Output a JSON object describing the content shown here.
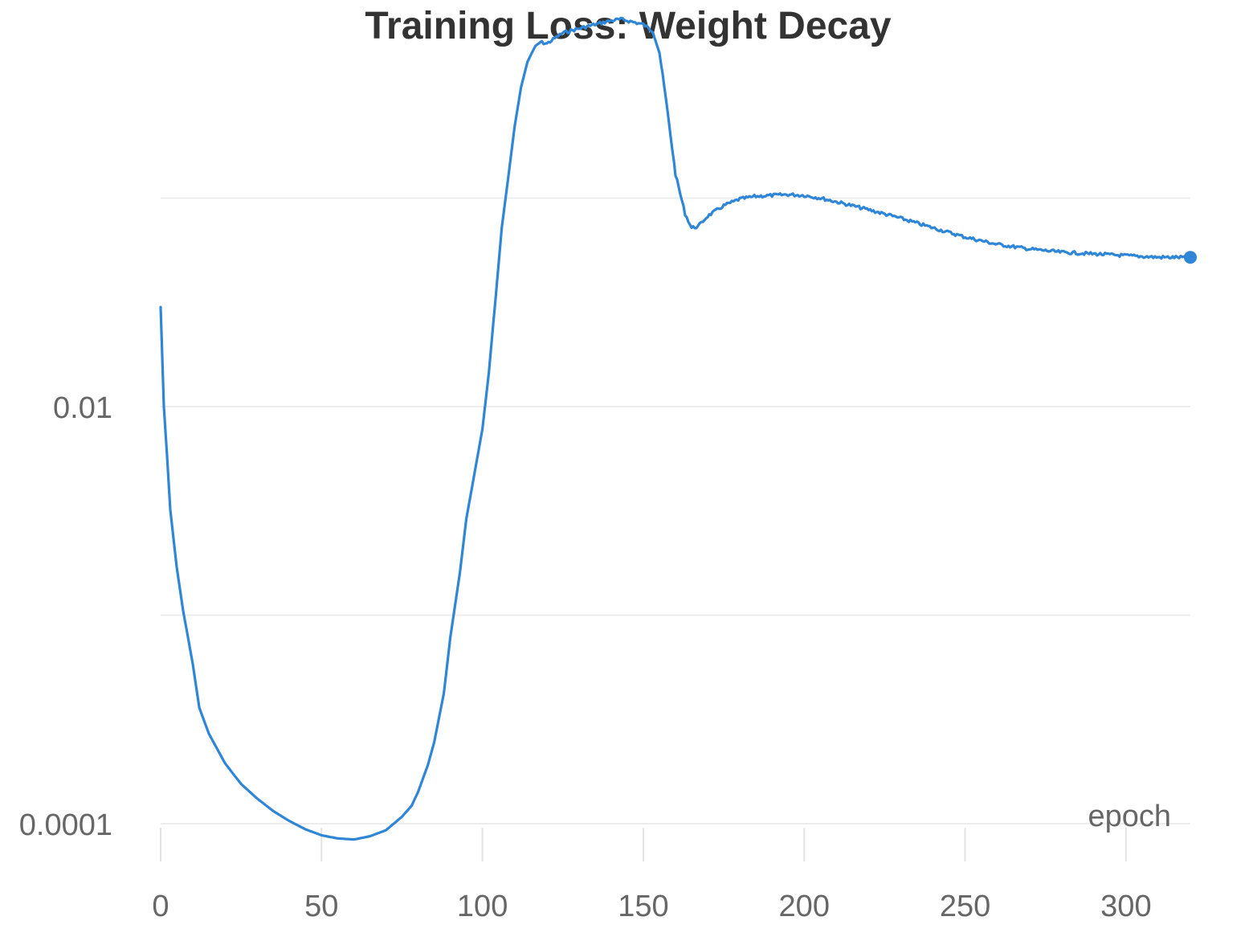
{
  "chart_data": {
    "type": "line",
    "title": "Training Loss: Weight Decay",
    "xlabel": "epoch",
    "ylabel": "",
    "yscale": "log",
    "xlim": [
      0,
      320
    ],
    "ylim": [
      8e-05,
      2.0
    ],
    "x_ticks": [
      0,
      50,
      100,
      150,
      200,
      250,
      300
    ],
    "x_tick_labels": [
      "0",
      "50",
      "100",
      "150",
      "200",
      "250",
      "300"
    ],
    "y_ticks": [
      0.0001,
      0.01
    ],
    "y_tick_labels": [
      "0.0001",
      "0.01"
    ],
    "y_gridlines": [
      0.0001,
      0.001,
      0.01,
      0.1
    ],
    "grid": true,
    "line_color": "#2f86d6",
    "series": [
      {
        "x": [
          0,
          1,
          2,
          3,
          5,
          7,
          10,
          12,
          15,
          20,
          25,
          30,
          35,
          40,
          45,
          50,
          55,
          60,
          65,
          70,
          75,
          78,
          80,
          83,
          85,
          88,
          90,
          93,
          95,
          97,
          100,
          102,
          104,
          106,
          108,
          110,
          112,
          114,
          116,
          118,
          120,
          125,
          130,
          135,
          140,
          143,
          145,
          150,
          153,
          155,
          157,
          160,
          163,
          165,
          167,
          170,
          175,
          180,
          185,
          190,
          195,
          200,
          205,
          210,
          220,
          230,
          240,
          250,
          260,
          270,
          280,
          290,
          300,
          310,
          320
        ],
        "y": [
          0.03,
          0.01,
          0.0058,
          0.0032,
          0.0017,
          0.00105,
          0.00058,
          0.00036,
          0.00027,
          0.000195,
          0.000155,
          0.000132,
          0.000115,
          0.000103,
          9.4e-05,
          8.8e-05,
          8.5e-05,
          8.4e-05,
          8.7e-05,
          9.3e-05,
          0.000108,
          0.000122,
          0.000142,
          0.00019,
          0.000245,
          0.00042,
          0.00078,
          0.0016,
          0.0029,
          0.0043,
          0.0078,
          0.0145,
          0.032,
          0.072,
          0.125,
          0.22,
          0.34,
          0.45,
          0.52,
          0.56,
          0.55,
          0.62,
          0.65,
          0.68,
          0.71,
          0.72,
          0.71,
          0.68,
          0.63,
          0.5,
          0.3,
          0.13,
          0.084,
          0.072,
          0.073,
          0.082,
          0.092,
          0.099,
          0.102,
          0.103,
          0.104,
          0.103,
          0.1,
          0.096,
          0.088,
          0.08,
          0.072,
          0.065,
          0.06,
          0.057,
          0.055,
          0.054,
          0.053,
          0.052,
          0.052
        ]
      }
    ]
  }
}
